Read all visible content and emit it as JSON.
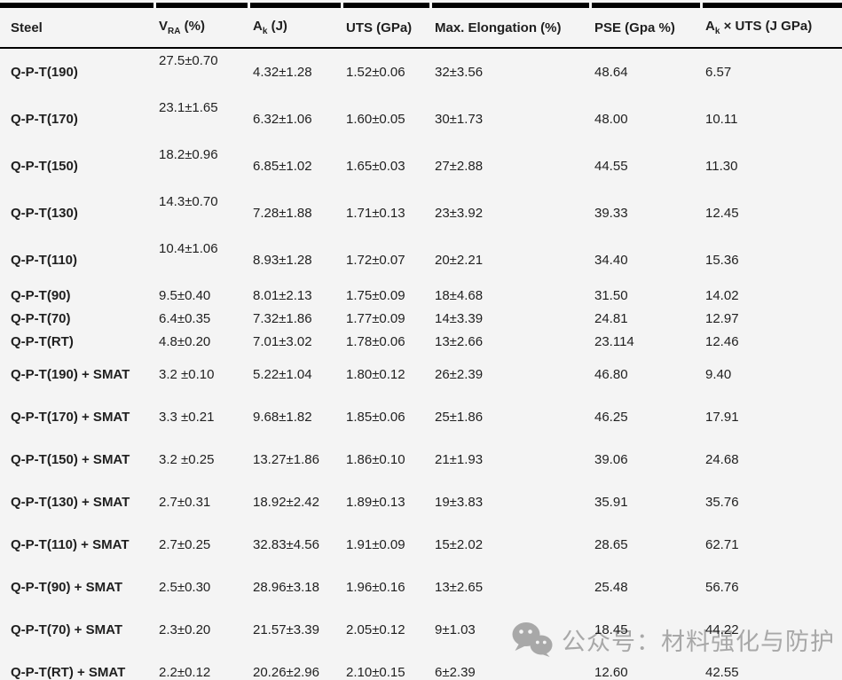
{
  "table": {
    "columns": [
      {
        "key": "steel",
        "pre": "Steel",
        "sub": "",
        "post": ""
      },
      {
        "key": "vra",
        "pre": "V",
        "sub": "RA",
        "post": " (%)"
      },
      {
        "key": "ak",
        "pre": "A",
        "sub": "k",
        "post": " (J)"
      },
      {
        "key": "uts",
        "pre": "UTS (GPa)",
        "sub": "",
        "post": ""
      },
      {
        "key": "elong",
        "pre": "Max. Elongation (%)",
        "sub": "",
        "post": ""
      },
      {
        "key": "pse",
        "pre": "PSE (Gpa %)",
        "sub": "",
        "post": ""
      },
      {
        "key": "akuts",
        "pre": "A",
        "sub": "k",
        "post": " × UTS (J GPa)"
      }
    ],
    "rows": [
      {
        "style": "tall-raised",
        "steel": "Q-P-T(190)",
        "vra": "27.5±0.70",
        "ak": "4.32±1.28",
        "uts": "1.52±0.06",
        "elong": "32±3.56",
        "pse": "48.64",
        "akuts": "6.57"
      },
      {
        "style": "tall-raised",
        "steel": "Q-P-T(170)",
        "vra": "23.1±1.65",
        "ak": "6.32±1.06",
        "uts": "1.60±0.05",
        "elong": "30±1.73",
        "pse": "48.00",
        "akuts": "10.11"
      },
      {
        "style": "tall-raised",
        "steel": "Q-P-T(150)",
        "vra": "18.2±0.96",
        "ak": "6.85±1.02",
        "uts": "1.65±0.03",
        "elong": "27±2.88",
        "pse": "44.55",
        "akuts": "11.30"
      },
      {
        "style": "tall-raised",
        "steel": "Q-P-T(130)",
        "vra": "14.3±0.70",
        "ak": "7.28±1.88",
        "uts": "1.71±0.13",
        "elong": "23±3.92",
        "pse": "39.33",
        "akuts": "12.45"
      },
      {
        "style": "tall-raised",
        "steel": "Q-P-T(110)",
        "vra": "10.4±1.06",
        "ak": "8.93±1.28",
        "uts": "1.72±0.07",
        "elong": "20±2.21",
        "pse": "34.40",
        "akuts": "15.36"
      },
      {
        "style": "compact",
        "steel": "Q-P-T(90)",
        "vra": "9.5±0.40",
        "ak": "8.01±2.13",
        "uts": "1.75±0.09",
        "elong": "18±4.68",
        "pse": "31.50",
        "akuts": "14.02"
      },
      {
        "style": "compact",
        "steel": "Q-P-T(70)",
        "vra": "6.4±0.35",
        "ak": "7.32±1.86",
        "uts": "1.77±0.09",
        "elong": "14±3.39",
        "pse": "24.81",
        "akuts": "12.97"
      },
      {
        "style": "compact",
        "steel": "Q-P-T(RT)",
        "vra": "4.8±0.20",
        "ak": "7.01±3.02",
        "uts": "1.78±0.06",
        "elong": "13±2.66",
        "pse": "23.114",
        "akuts": "12.46"
      },
      {
        "style": "tall",
        "steel": "Q-P-T(190) + SMAT",
        "vra": "3.2 ±0.10",
        "ak": "5.22±1.04",
        "uts": "1.80±0.12",
        "elong": "26±2.39",
        "pse": "46.80",
        "akuts": "9.40"
      },
      {
        "style": "tall",
        "steel": "Q-P-T(170) + SMAT",
        "vra": "3.3 ±0.21",
        "ak": "9.68±1.82",
        "uts": "1.85±0.06",
        "elong": "25±1.86",
        "pse": "46.25",
        "akuts": "17.91"
      },
      {
        "style": "tall",
        "steel": "Q-P-T(150) + SMAT",
        "vra": "3.2 ±0.25",
        "ak": "13.27±1.86",
        "uts": "1.86±0.10",
        "elong": "21±1.93",
        "pse": "39.06",
        "akuts": "24.68"
      },
      {
        "style": "tall",
        "steel": "Q-P-T(130) + SMAT",
        "vra": "2.7±0.31",
        "ak": "18.92±2.42",
        "uts": "1.89±0.13",
        "elong": "19±3.83",
        "pse": "35.91",
        "akuts": "35.76"
      },
      {
        "style": "tall",
        "steel": "Q-P-T(110) + SMAT",
        "vra": "2.7±0.25",
        "ak": "32.83±4.56",
        "uts": "1.91±0.09",
        "elong": "15±2.02",
        "pse": "28.65",
        "akuts": "62.71"
      },
      {
        "style": "tall",
        "steel": "Q-P-T(90) + SMAT",
        "vra": "2.5±0.30",
        "ak": "28.96±3.18",
        "uts": "1.96±0.16",
        "elong": "13±2.65",
        "pse": "25.48",
        "akuts": "56.76"
      },
      {
        "style": "tall",
        "steel": "Q-P-T(70) + SMAT",
        "vra": "2.3±0.20",
        "ak": "21.57±3.39",
        "uts": "2.05±0.12",
        "elong": "9±1.03",
        "pse": "18.45",
        "akuts": "44.22"
      },
      {
        "style": "tall",
        "steel": "Q-P-T(RT) + SMAT",
        "vra": "2.2±0.12",
        "ak": "20.26±2.96",
        "uts": "2.10±0.15",
        "elong": "6±2.39",
        "pse": "12.60",
        "akuts": "42.55"
      }
    ]
  },
  "watermark": {
    "icon": "wechat-icon",
    "text": "公众号：材料强化与防护",
    "color": "#a8a8a8"
  },
  "colors": {
    "background": "#f4f4f4",
    "border": "#000000",
    "text": "#1f1f1f",
    "watermark": "#a8a8a8"
  }
}
